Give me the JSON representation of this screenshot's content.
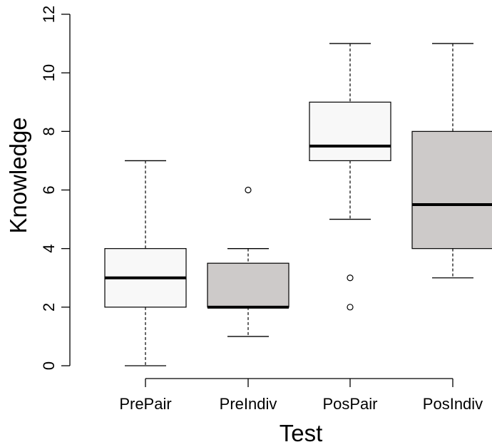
{
  "chart_data": {
    "type": "boxplot",
    "xlabel": "Test",
    "ylabel": "Knowledge",
    "ylim": [
      0,
      12
    ],
    "y_ticks": [
      "0",
      "2",
      "4",
      "6",
      "8",
      "10",
      "12"
    ],
    "grid": false,
    "categories": [
      "PrePair",
      "PreIndiv",
      "PosPair",
      "PosIndiv"
    ],
    "boxes": [
      {
        "category": "PrePair",
        "whisker_low": 0,
        "q1": 2,
        "median": 3,
        "q3": 4,
        "whisker_high": 7,
        "outliers": [],
        "fill": "#f8f8f8"
      },
      {
        "category": "PreIndiv",
        "whisker_low": 1,
        "q1": 2,
        "median": 2,
        "q3": 3.5,
        "whisker_high": 4,
        "outliers": [
          6
        ],
        "fill": "#cdcac9"
      },
      {
        "category": "PosPair",
        "whisker_low": 5,
        "q1": 7,
        "median": 7.5,
        "q3": 9,
        "whisker_high": 11,
        "outliers": [
          3,
          2
        ],
        "fill": "#f8f8f8"
      },
      {
        "category": "PosIndiv",
        "whisker_low": 3,
        "q1": 4,
        "median": 5.5,
        "q3": 8,
        "whisker_high": 11,
        "outliers": [],
        "fill": "#cdcac9"
      }
    ]
  }
}
